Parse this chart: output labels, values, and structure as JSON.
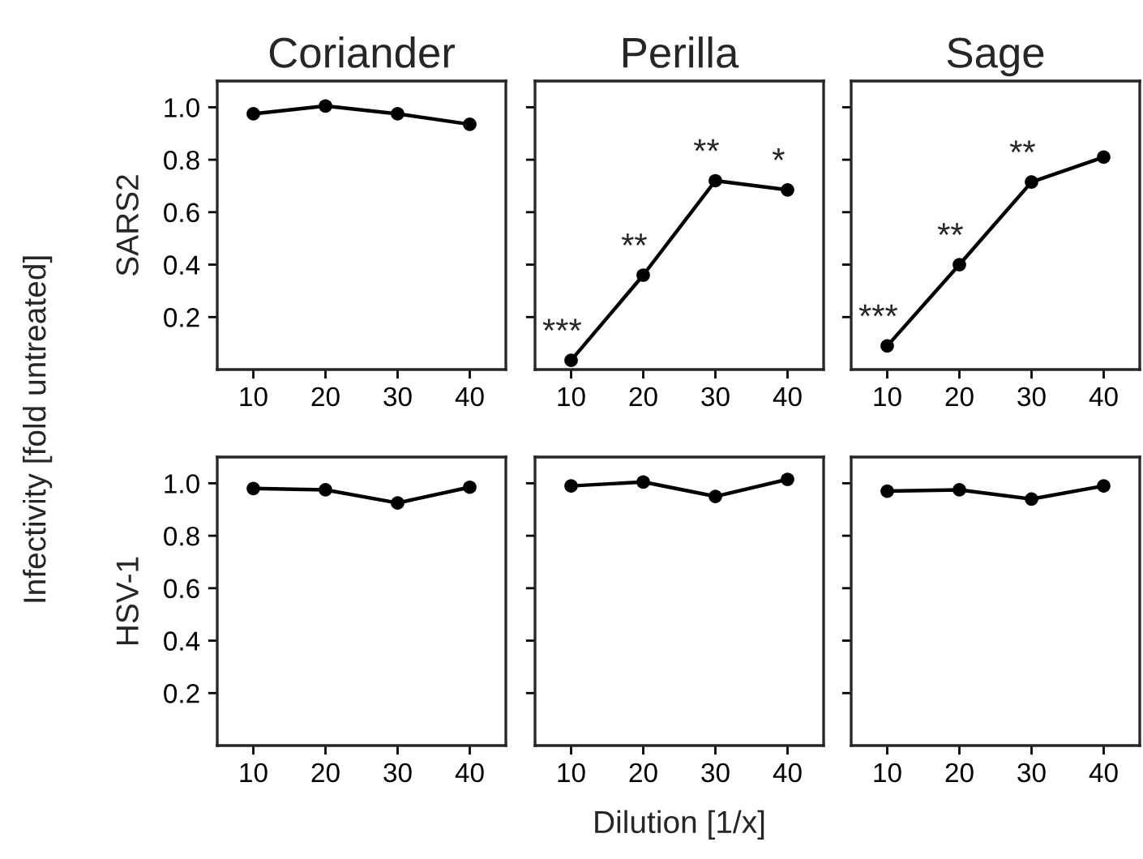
{
  "chart_data": [
    {
      "type": "line",
      "title": "Coriander",
      "ylabel": "SARS2",
      "x": [
        10,
        20,
        30,
        40
      ],
      "series": [
        {
          "color": "#000000",
          "values": [
            0.975,
            1.005,
            0.975,
            0.935
          ]
        }
      ],
      "xlim": [
        5,
        45
      ],
      "ylim": [
        0,
        1.1
      ],
      "xticks": [
        10,
        20,
        30,
        40
      ],
      "yticks": [
        0.2,
        0.4,
        0.6,
        0.8,
        {
          "value": 1,
          "label": "1.0"
        }
      ],
      "marker": "circle",
      "line_style": "solid"
    },
    {
      "type": "line",
      "title": "Perilla",
      "x": [
        10,
        20,
        30,
        40
      ],
      "series": [
        {
          "color": "#000000",
          "values": [
            0.035,
            0.36,
            0.72,
            0.685
          ]
        }
      ],
      "xlim": [
        5,
        45
      ],
      "ylim": [
        0,
        1.1
      ],
      "xticks": [
        10,
        20,
        30,
        40
      ],
      "yticks": [
        {
          "value": 0.2,
          "label": null
        },
        {
          "value": 0.4,
          "label": null
        },
        {
          "value": 0.6,
          "label": null
        },
        {
          "value": 0.8,
          "label": null
        },
        {
          "value": 1.0,
          "label": null
        }
      ],
      "tick_labels": "x",
      "marker": "circle",
      "line_style": "solid",
      "annotations": [
        {
          "text": "***",
          "x": 10,
          "y": 0.035
        },
        {
          "text": "**",
          "x": 20,
          "y": 0.36
        },
        {
          "text": "**",
          "x": 30,
          "y": 0.72
        },
        {
          "text": "*",
          "x": 40,
          "y": 0.685
        }
      ]
    },
    {
      "type": "line",
      "title": "Sage",
      "x": [
        10,
        20,
        30,
        40
      ],
      "series": [
        {
          "color": "#000000",
          "values": [
            0.09,
            0.4,
            0.715,
            0.81
          ]
        }
      ],
      "xlim": [
        5,
        45
      ],
      "ylim": [
        0,
        1.1
      ],
      "xticks": [
        10,
        20,
        30,
        40
      ],
      "yticks": [
        {
          "value": 0.2,
          "label": null
        },
        {
          "value": 0.4,
          "label": null
        },
        {
          "value": 0.6,
          "label": null
        },
        {
          "value": 0.8,
          "label": null
        },
        {
          "value": 1.0,
          "label": null
        }
      ],
      "tick_labels": "x",
      "marker": "circle",
      "line_style": "solid",
      "annotations": [
        {
          "text": "***",
          "x": 10,
          "y": 0.09
        },
        {
          "text": "**",
          "x": 20,
          "y": 0.4
        },
        {
          "text": "**",
          "x": 30,
          "y": 0.715
        }
      ]
    },
    {
      "type": "line",
      "ylabel": "HSV-1",
      "x": [
        10,
        20,
        30,
        40
      ],
      "series": [
        {
          "color": "#000000",
          "values": [
            0.98,
            0.975,
            0.925,
            0.985
          ]
        }
      ],
      "xlim": [
        5,
        45
      ],
      "ylim": [
        0,
        1.1
      ],
      "xticks": [
        10,
        20,
        30,
        40
      ],
      "yticks": [
        0.2,
        0.4,
        0.6,
        0.8,
        {
          "value": 1,
          "label": "1.0"
        }
      ],
      "marker": "circle",
      "line_style": "solid",
      "annotations": [
        "Infectivity [fold untreated]"
      ]
    },
    {
      "type": "line",
      "xlabel": "Dilution [1/x]",
      "x": [
        10,
        20,
        30,
        40
      ],
      "series": [
        {
          "color": "#000000",
          "values": [
            0.99,
            1.005,
            0.95,
            1.015
          ]
        }
      ],
      "xlim": [
        5,
        45
      ],
      "ylim": [
        0,
        1.1
      ],
      "xticks": [
        10,
        20,
        30,
        40
      ],
      "yticks": [
        {
          "value": 0.2,
          "label": null
        },
        {
          "value": 0.4,
          "label": null
        },
        {
          "value": 0.6,
          "label": null
        },
        {
          "value": 0.8,
          "label": null
        },
        {
          "value": 1.0,
          "label": null
        }
      ],
      "tick_labels": "x",
      "marker": "circle",
      "line_style": "solid"
    },
    {
      "type": "line",
      "x": [
        10,
        20,
        30,
        40
      ],
      "series": [
        {
          "color": "#000000",
          "values": [
            0.97,
            0.975,
            0.94,
            0.99
          ]
        }
      ],
      "xlim": [
        5,
        45
      ],
      "ylim": [
        0,
        1.1
      ],
      "xticks": [
        10,
        20,
        30,
        40
      ],
      "yticks": [
        {
          "value": 0.2,
          "label": null
        },
        {
          "value": 0.4,
          "label": null
        },
        {
          "value": 0.6,
          "label": null
        },
        {
          "value": 0.8,
          "label": null
        },
        {
          "value": 1.0,
          "label": null
        }
      ],
      "tick_labels": "x",
      "marker": "circle",
      "line_style": "solid"
    }
  ]
}
